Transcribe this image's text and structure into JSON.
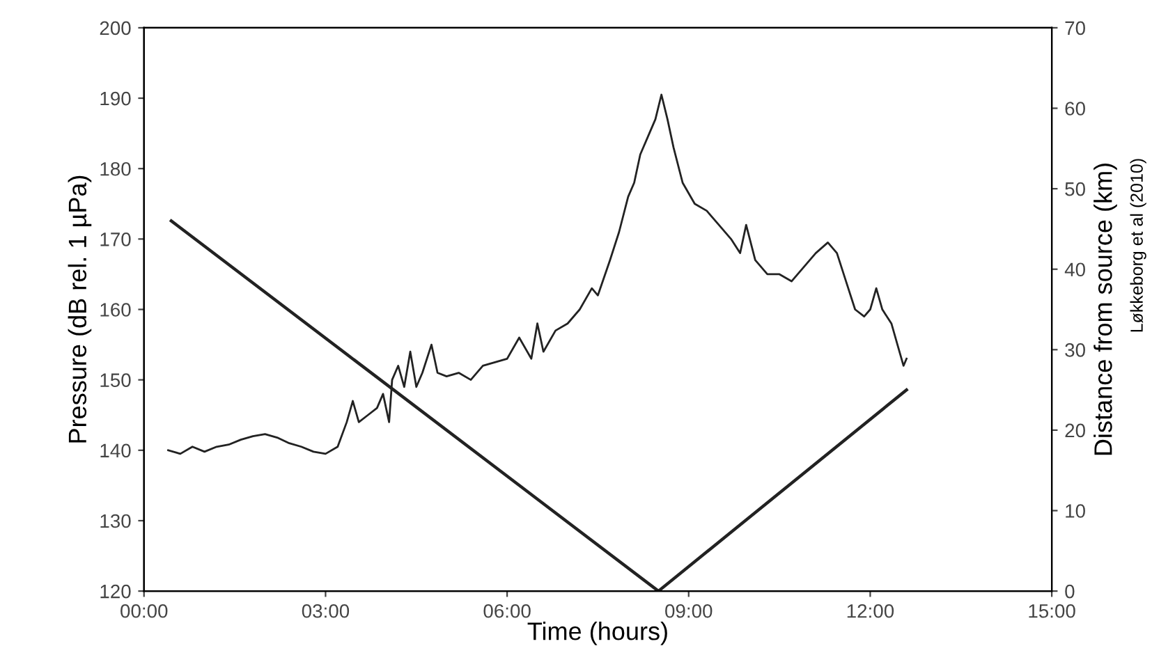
{
  "chart_data": {
    "type": "line",
    "xlabel": "Time (hours)",
    "ylabel": "Pressure (dB rel. 1 µPa)",
    "y2label": "Distance from source (km)",
    "annotations": [
      "Løkkeborg et al (2010)"
    ],
    "xlim": [
      0,
      15
    ],
    "xticks": [
      {
        "value": 0,
        "label": "00:00"
      },
      {
        "value": 3,
        "label": "03:00"
      },
      {
        "value": 6,
        "label": "06:00"
      },
      {
        "value": 9,
        "label": "09:00"
      },
      {
        "value": 12,
        "label": "12:00"
      },
      {
        "value": 15,
        "label": "15:00"
      }
    ],
    "ylim": [
      120,
      200
    ],
    "yticks": [
      120,
      130,
      140,
      150,
      160,
      170,
      180,
      190,
      200
    ],
    "y2lim": [
      0,
      70
    ],
    "y2ticks": [
      0,
      10,
      20,
      30,
      40,
      50,
      60,
      70
    ],
    "grid": false,
    "legend": false,
    "line_style": "solid",
    "marker": "none",
    "series": [
      {
        "color": "#222222",
        "x": [
          0.4,
          0.6,
          0.8,
          1.0,
          1.2,
          1.4,
          1.6,
          1.8,
          2.0,
          2.2,
          2.4,
          2.6,
          2.8,
          3.0,
          3.2,
          3.35,
          3.45,
          3.55,
          3.7,
          3.85,
          3.95,
          4.05,
          4.1,
          4.2,
          4.3,
          4.4,
          4.5,
          4.6,
          4.75,
          4.85,
          5.0,
          5.2,
          5.4,
          5.6,
          5.8,
          6.0,
          6.2,
          6.4,
          6.5,
          6.6,
          6.8,
          7.0,
          7.2,
          7.4,
          7.5,
          7.7,
          7.85,
          8.0,
          8.1,
          8.2,
          8.35,
          8.45,
          8.55,
          8.65,
          8.75,
          8.9,
          9.1,
          9.3,
          9.5,
          9.7,
          9.85,
          9.95,
          10.1,
          10.3,
          10.5,
          10.7,
          10.9,
          11.1,
          11.3,
          11.45,
          11.6,
          11.75,
          11.9,
          12.0,
          12.1,
          12.2,
          12.35,
          12.45,
          12.55,
          12.6
        ],
        "values": [
          140,
          139.5,
          140.5,
          139.8,
          140.5,
          140.8,
          141.5,
          142,
          142.3,
          141.8,
          141,
          140.5,
          139.8,
          139.5,
          140.5,
          144,
          147,
          144,
          145,
          146,
          148,
          144,
          150,
          152,
          149,
          154,
          149,
          151,
          155,
          151,
          150.5,
          151,
          150,
          152,
          152.5,
          153,
          156,
          153,
          158,
          154,
          157,
          158,
          160,
          163,
          162,
          167,
          171,
          176,
          178,
          182,
          185,
          187,
          190.5,
          187,
          183,
          178,
          175,
          174,
          172,
          170,
          168,
          172,
          167,
          165,
          165,
          164,
          166,
          168,
          169.5,
          168,
          164,
          160,
          159,
          160,
          163,
          160,
          158,
          155,
          152,
          153
        ]
      },
      {
        "color": "#222222",
        "axis": "y2",
        "x": [
          0.45,
          8.5,
          12.6
        ],
        "values": [
          46,
          0,
          25
        ]
      }
    ]
  }
}
